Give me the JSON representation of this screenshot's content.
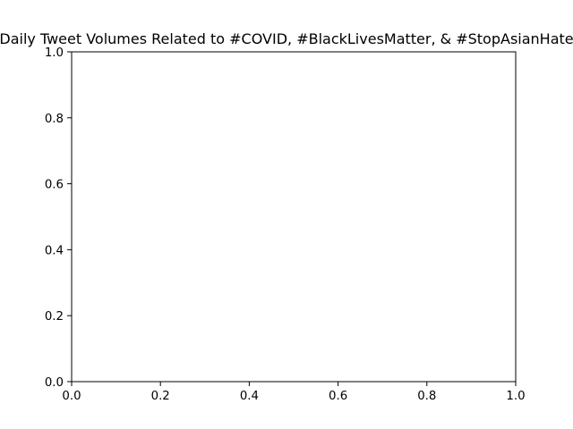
{
  "chart_data": {
    "type": "line",
    "title": "Daily Tweet Volumes Related to #COVID, #BlackLivesMatter, & #StopAsianHate",
    "xlabel": "",
    "ylabel": "",
    "xlim": [
      0.0,
      1.0
    ],
    "ylim": [
      0.0,
      1.0
    ],
    "xticks": [
      "0.0",
      "0.2",
      "0.4",
      "0.6",
      "0.8",
      "1.0"
    ],
    "yticks": [
      "0.0",
      "0.2",
      "0.4",
      "0.6",
      "0.8",
      "1.0"
    ],
    "series": [],
    "grid": false,
    "legend": "none",
    "colors": {
      "axes": "#000000",
      "background": "#ffffff"
    }
  }
}
